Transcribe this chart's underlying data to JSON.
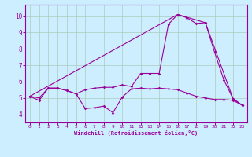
{
  "xlabel": "Windchill (Refroidissement éolien,°C)",
  "bg_color": "#cceeff",
  "line_color": "#990099",
  "grid_color": "#aaccbb",
  "xlim": [
    -0.5,
    23.5
  ],
  "ylim": [
    3.5,
    10.7
  ],
  "xticks": [
    0,
    1,
    2,
    3,
    4,
    5,
    6,
    7,
    8,
    9,
    10,
    11,
    12,
    13,
    14,
    15,
    16,
    17,
    18,
    19,
    20,
    21,
    22,
    23
  ],
  "yticks": [
    4,
    5,
    6,
    7,
    8,
    9,
    10
  ],
  "line1_x": [
    0,
    1,
    2,
    3,
    4,
    5,
    6,
    7,
    8,
    9,
    10,
    11,
    12,
    13,
    14,
    15,
    16,
    17,
    18,
    19,
    20,
    21,
    22,
    23
  ],
  "line1_y": [
    5.1,
    4.85,
    5.6,
    5.6,
    5.45,
    5.25,
    4.35,
    4.4,
    4.5,
    4.1,
    5.05,
    5.55,
    5.6,
    5.55,
    5.6,
    5.55,
    5.5,
    5.3,
    5.1,
    5.0,
    4.9,
    4.9,
    4.85,
    4.55
  ],
  "line2_x": [
    0,
    1,
    2,
    3,
    4,
    5,
    6,
    7,
    8,
    9,
    10,
    11,
    12,
    13,
    14,
    15,
    16,
    17,
    18,
    19,
    20,
    21,
    22,
    23
  ],
  "line2_y": [
    5.1,
    5.0,
    5.6,
    5.6,
    5.45,
    5.25,
    5.5,
    5.6,
    5.65,
    5.65,
    5.8,
    5.7,
    6.5,
    6.5,
    6.5,
    9.5,
    10.1,
    9.9,
    9.55,
    9.6,
    7.8,
    6.1,
    4.95,
    4.55
  ],
  "line3_x": [
    0,
    16,
    19,
    22,
    23
  ],
  "line3_y": [
    5.1,
    10.1,
    9.6,
    4.95,
    4.55
  ],
  "figwidth": 3.2,
  "figheight": 2.0,
  "dpi": 100
}
